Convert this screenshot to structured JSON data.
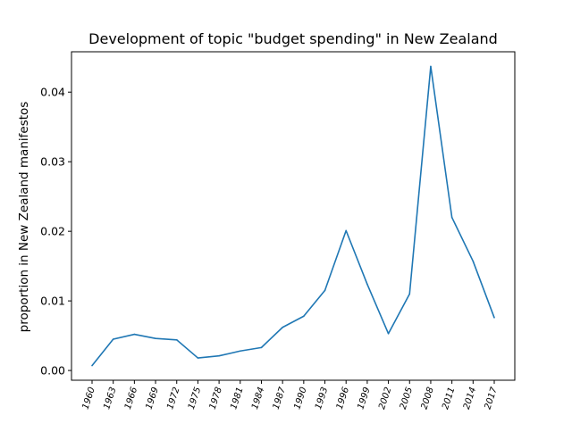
{
  "chart_data": {
    "type": "line",
    "title": "Development of topic \"budget spending\" in New Zealand",
    "xlabel": "",
    "ylabel": "proportion in New Zealand manifestos",
    "categories": [
      "1960",
      "1963",
      "1966",
      "1969",
      "1972",
      "1975",
      "1978",
      "1981",
      "1984",
      "1987",
      "1990",
      "1993",
      "1996",
      "1999",
      "2002",
      "2005",
      "2008",
      "2011",
      "2014",
      "2017"
    ],
    "series": [
      {
        "values": [
          0.0007,
          0.0045,
          0.0052,
          0.0046,
          0.0044,
          0.0018,
          0.0021,
          0.0028,
          0.0033,
          0.0062,
          0.0078,
          0.0115,
          0.0201,
          0.0124,
          0.0053,
          0.011,
          0.0437,
          0.022,
          0.0157,
          0.0076
        ],
        "color": "#1f77b4"
      }
    ],
    "yticks": [
      0.0,
      0.01,
      0.02,
      0.03,
      0.04
    ],
    "ytick_labels": [
      "0.00",
      "0.01",
      "0.02",
      "0.03",
      "0.04"
    ],
    "ylim": [
      -0.0014,
      0.0458
    ],
    "grid": false,
    "legend": "none"
  }
}
